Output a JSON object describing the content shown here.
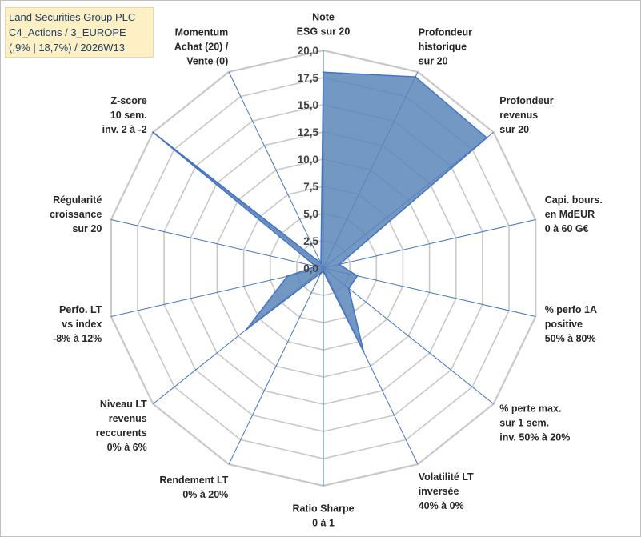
{
  "title": {
    "line1": "Land Securities Group PLC",
    "line2": "C4_Actions / 3_EUROPE",
    "line3": "(,9% | 18,7%) / 2026W13"
  },
  "colors": {
    "fill": "#5b86b8",
    "stroke": "#4472c4",
    "grid": "#c8c8c8",
    "title_bg": "#fdf0c5"
  },
  "chart_data": {
    "type": "radar",
    "title": "Land Securities Group PLC",
    "rlim": [
      0,
      20
    ],
    "tick_values": [
      0,
      2.5,
      5,
      7.5,
      10,
      12.5,
      15,
      17.5,
      20
    ],
    "tick_labels": [
      "0,0",
      "2,5",
      "5,0",
      "7,5",
      "10,0",
      "12,5",
      "15,0",
      "17,5",
      "20,0"
    ],
    "axes": [
      {
        "label_lines": [
          "Note",
          "ESG sur 20"
        ],
        "value": 18.0
      },
      {
        "label_lines": [
          "Profondeur",
          "historique",
          "sur 20"
        ],
        "value": 19.5
      },
      {
        "label_lines": [
          "Profondeur",
          "revenus",
          "sur 20"
        ],
        "value": 19.2
      },
      {
        "label_lines": [
          "Capi. bours.",
          "en MdEUR",
          "0 à 60 G€"
        ],
        "value": 1.5
      },
      {
        "label_lines": [
          "% perfo 1A",
          "positive",
          "50% à 80%"
        ],
        "value": 3.2
      },
      {
        "label_lines": [
          "% perte max.",
          "sur 1 sem.",
          "inv. 50% à 20%"
        ],
        "value": 3.0
      },
      {
        "label_lines": [
          "Volatilité LT",
          "inversée",
          "40% à 0%"
        ],
        "value": 8.5
      },
      {
        "label_lines": [
          "Ratio Sharpe",
          "0 à 1"
        ],
        "value": 0.3
      },
      {
        "label_lines": [
          "Rendement LT",
          "0% à 20%"
        ],
        "value": 0.5
      },
      {
        "label_lines": [
          "Niveau LT",
          "revenus",
          "reccurents",
          "0% à 6%"
        ],
        "value": 9.0
      },
      {
        "label_lines": [
          "Perfo. LT",
          "vs index",
          "-8% à 12%"
        ],
        "value": 3.4
      },
      {
        "label_lines": [
          "Régularité",
          "croissance",
          "sur 20"
        ],
        "value": 0.7
      },
      {
        "label_lines": [
          "Z-score",
          "10 sem.",
          "inv. 2 à -2"
        ],
        "value": 20.0
      },
      {
        "label_lines": [
          "Momentum",
          "Achat (20) /",
          "Vente (0)"
        ],
        "value": 0.5
      }
    ]
  }
}
